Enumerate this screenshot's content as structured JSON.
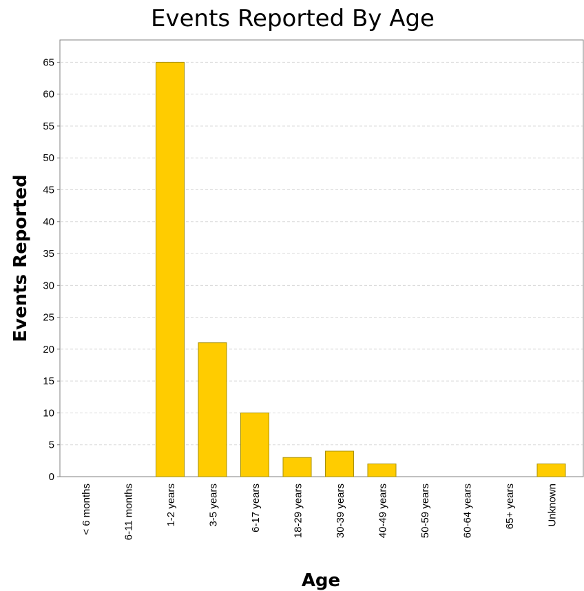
{
  "chart_data": {
    "type": "bar",
    "title": "Events Reported By Age",
    "xlabel": "Age",
    "ylabel": "Events Reported",
    "categories": [
      "< 6 months",
      "6-11 months",
      "1-2 years",
      "3-5 years",
      "6-17 years",
      "18-29 years",
      "30-39 years",
      "40-49 years",
      "50-59 years",
      "60-64 years",
      "65+ years",
      "Unknown"
    ],
    "values": [
      0,
      0,
      65,
      21,
      10,
      3,
      4,
      2,
      0,
      0,
      0,
      2
    ],
    "ylim": [
      0,
      68.5
    ],
    "yticks": [
      0,
      5,
      10,
      15,
      20,
      25,
      30,
      35,
      40,
      45,
      50,
      55,
      60,
      65
    ],
    "grid": true,
    "bar_color": "#ffcc00"
  }
}
